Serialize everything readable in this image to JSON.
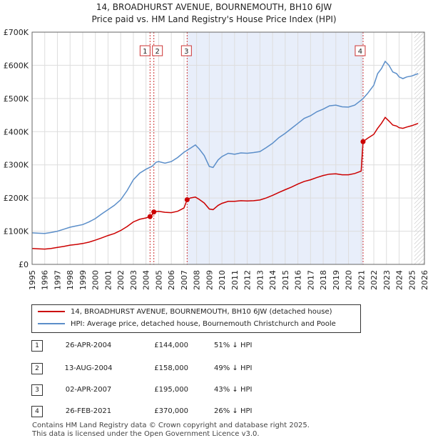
{
  "title_line1": "14, BROADHURST AVENUE, BOURNEMOUTH, BH10 6JW",
  "title_line2": "Price paid vs. HM Land Registry's House Price Index (HPI)",
  "chart_data": {
    "type": "line",
    "xlim": [
      1995,
      2026
    ],
    "ylim": [
      0,
      700000
    ],
    "x_ticks": [
      "1995",
      "1996",
      "1997",
      "1998",
      "1999",
      "2000",
      "2001",
      "2002",
      "2003",
      "2004",
      "2005",
      "2006",
      "2007",
      "2008",
      "2009",
      "2010",
      "2011",
      "2012",
      "2013",
      "2014",
      "2015",
      "2016",
      "2017",
      "2018",
      "2019",
      "2020",
      "2021",
      "2022",
      "2023",
      "2024",
      "2025",
      "2026"
    ],
    "y_ticks": [
      {
        "value": 0,
        "label": "£0"
      },
      {
        "value": 100000,
        "label": "£100K"
      },
      {
        "value": 200000,
        "label": "£200K"
      },
      {
        "value": 300000,
        "label": "£300K"
      },
      {
        "value": 400000,
        "label": "£400K"
      },
      {
        "value": 500000,
        "label": "£500K"
      },
      {
        "value": 600000,
        "label": "£600K"
      },
      {
        "value": 700000,
        "label": "£700K"
      }
    ],
    "shaded_period": [
      2007.25,
      2021.15
    ],
    "future_from": 2025.2,
    "series": [
      {
        "name": "HPI: Average price, detached house, Bournemouth Christchurch and Poole",
        "color": "#5b8ec9",
        "points": [
          [
            1995,
            95000
          ],
          [
            1995.5,
            94000
          ],
          [
            1996,
            93000
          ],
          [
            1996.5,
            96000
          ],
          [
            1997,
            100000
          ],
          [
            1997.5,
            106000
          ],
          [
            1998,
            112000
          ],
          [
            1998.5,
            116000
          ],
          [
            1999,
            120000
          ],
          [
            1999.5,
            128000
          ],
          [
            2000,
            138000
          ],
          [
            2000.5,
            152000
          ],
          [
            2001,
            165000
          ],
          [
            2001.5,
            178000
          ],
          [
            2002,
            195000
          ],
          [
            2002.5,
            222000
          ],
          [
            2003,
            255000
          ],
          [
            2003.5,
            275000
          ],
          [
            2004,
            287000
          ],
          [
            2004.5,
            296000
          ],
          [
            2004.8,
            308000
          ],
          [
            2005,
            310000
          ],
          [
            2005.5,
            305000
          ],
          [
            2006,
            310000
          ],
          [
            2006.5,
            322000
          ],
          [
            2007,
            338000
          ],
          [
            2007.5,
            350000
          ],
          [
            2007.9,
            360000
          ],
          [
            2008.2,
            348000
          ],
          [
            2008.6,
            328000
          ],
          [
            2009,
            295000
          ],
          [
            2009.3,
            292000
          ],
          [
            2009.7,
            315000
          ],
          [
            2010,
            325000
          ],
          [
            2010.5,
            335000
          ],
          [
            2011,
            332000
          ],
          [
            2011.5,
            336000
          ],
          [
            2012,
            335000
          ],
          [
            2012.5,
            337000
          ],
          [
            2013,
            340000
          ],
          [
            2013.5,
            352000
          ],
          [
            2014,
            365000
          ],
          [
            2014.5,
            382000
          ],
          [
            2015,
            395000
          ],
          [
            2015.5,
            410000
          ],
          [
            2016,
            425000
          ],
          [
            2016.5,
            440000
          ],
          [
            2017,
            448000
          ],
          [
            2017.5,
            460000
          ],
          [
            2018,
            468000
          ],
          [
            2018.5,
            478000
          ],
          [
            2019,
            480000
          ],
          [
            2019.5,
            475000
          ],
          [
            2020,
            474000
          ],
          [
            2020.5,
            480000
          ],
          [
            2021,
            495000
          ],
          [
            2021.15,
            500000
          ],
          [
            2021.5,
            515000
          ],
          [
            2022,
            540000
          ],
          [
            2022.3,
            575000
          ],
          [
            2022.6,
            590000
          ],
          [
            2022.9,
            612000
          ],
          [
            2023.2,
            600000
          ],
          [
            2023.5,
            580000
          ],
          [
            2023.8,
            575000
          ],
          [
            2024,
            565000
          ],
          [
            2024.3,
            560000
          ],
          [
            2024.6,
            565000
          ],
          [
            2025,
            568000
          ],
          [
            2025.5,
            575000
          ]
        ]
      },
      {
        "name": "14, BROADHURST AVENUE, BOURNEMOUTH, BH10 6JW (detached house)",
        "color": "#cc0000",
        "points": [
          [
            1995,
            48000
          ],
          [
            1995.5,
            47000
          ],
          [
            1996,
            46000
          ],
          [
            1996.5,
            48000
          ],
          [
            1997,
            51000
          ],
          [
            1997.5,
            54000
          ],
          [
            1998,
            58000
          ],
          [
            1998.5,
            60000
          ],
          [
            1999,
            63000
          ],
          [
            1999.5,
            67000
          ],
          [
            2000,
            73000
          ],
          [
            2000.5,
            80000
          ],
          [
            2001,
            87000
          ],
          [
            2001.5,
            93000
          ],
          [
            2002,
            102000
          ],
          [
            2002.5,
            114000
          ],
          [
            2003,
            128000
          ],
          [
            2003.5,
            136000
          ],
          [
            2004,
            140000
          ],
          [
            2004.32,
            144000
          ],
          [
            2004.5,
            150000
          ],
          [
            2004.62,
            158000
          ],
          [
            2005,
            160000
          ],
          [
            2005.5,
            157000
          ],
          [
            2006,
            156000
          ],
          [
            2006.5,
            160000
          ],
          [
            2007,
            170000
          ],
          [
            2007.25,
            195000
          ],
          [
            2007.5,
            200000
          ],
          [
            2007.9,
            203000
          ],
          [
            2008.2,
            196000
          ],
          [
            2008.6,
            185000
          ],
          [
            2009,
            167000
          ],
          [
            2009.3,
            165000
          ],
          [
            2009.7,
            178000
          ],
          [
            2010,
            184000
          ],
          [
            2010.5,
            190000
          ],
          [
            2011,
            190000
          ],
          [
            2011.5,
            192000
          ],
          [
            2012,
            191000
          ],
          [
            2012.5,
            192000
          ],
          [
            2013,
            194000
          ],
          [
            2013.5,
            200000
          ],
          [
            2014,
            208000
          ],
          [
            2014.5,
            217000
          ],
          [
            2015,
            225000
          ],
          [
            2015.5,
            233000
          ],
          [
            2016,
            242000
          ],
          [
            2016.5,
            250000
          ],
          [
            2017,
            255000
          ],
          [
            2017.5,
            262000
          ],
          [
            2018,
            268000
          ],
          [
            2018.5,
            272000
          ],
          [
            2019,
            273000
          ],
          [
            2019.5,
            270000
          ],
          [
            2020,
            270000
          ],
          [
            2020.5,
            274000
          ],
          [
            2021,
            281000
          ],
          [
            2021.15,
            370000
          ],
          [
            2021.5,
            380000
          ],
          [
            2022,
            392000
          ],
          [
            2022.3,
            410000
          ],
          [
            2022.6,
            425000
          ],
          [
            2022.9,
            443000
          ],
          [
            2023.2,
            432000
          ],
          [
            2023.5,
            420000
          ],
          [
            2023.8,
            417000
          ],
          [
            2024,
            412000
          ],
          [
            2024.3,
            410000
          ],
          [
            2024.6,
            414000
          ],
          [
            2025,
            418000
          ],
          [
            2025.5,
            425000
          ]
        ]
      }
    ],
    "markers": [
      {
        "id": "1",
        "x": 2004.32,
        "price": 144000
      },
      {
        "id": "2",
        "x": 2004.62,
        "price": 158000
      },
      {
        "id": "3",
        "x": 2007.25,
        "price": 195000
      },
      {
        "id": "4",
        "x": 2021.15,
        "price": 370000
      }
    ]
  },
  "legend": {
    "property_label": "14, BROADHURST AVENUE, BOURNEMOUTH, BH10 6JW (detached house)",
    "hpi_label": "HPI: Average price, detached house, Bournemouth Christchurch and Poole"
  },
  "transactions": [
    {
      "num": "1",
      "date": "26-APR-2004",
      "price": "£144,000",
      "hpi": "51% ↓ HPI"
    },
    {
      "num": "2",
      "date": "13-AUG-2004",
      "price": "£158,000",
      "hpi": "49% ↓ HPI"
    },
    {
      "num": "3",
      "date": "02-APR-2007",
      "price": "£195,000",
      "hpi": "43% ↓ HPI"
    },
    {
      "num": "4",
      "date": "26-FEB-2021",
      "price": "£370,000",
      "hpi": "26% ↓ HPI"
    }
  ],
  "footer_line1": "Contains HM Land Registry data © Crown copyright and database right 2025.",
  "footer_line2": "This data is licensed under the Open Government Licence v3.0."
}
